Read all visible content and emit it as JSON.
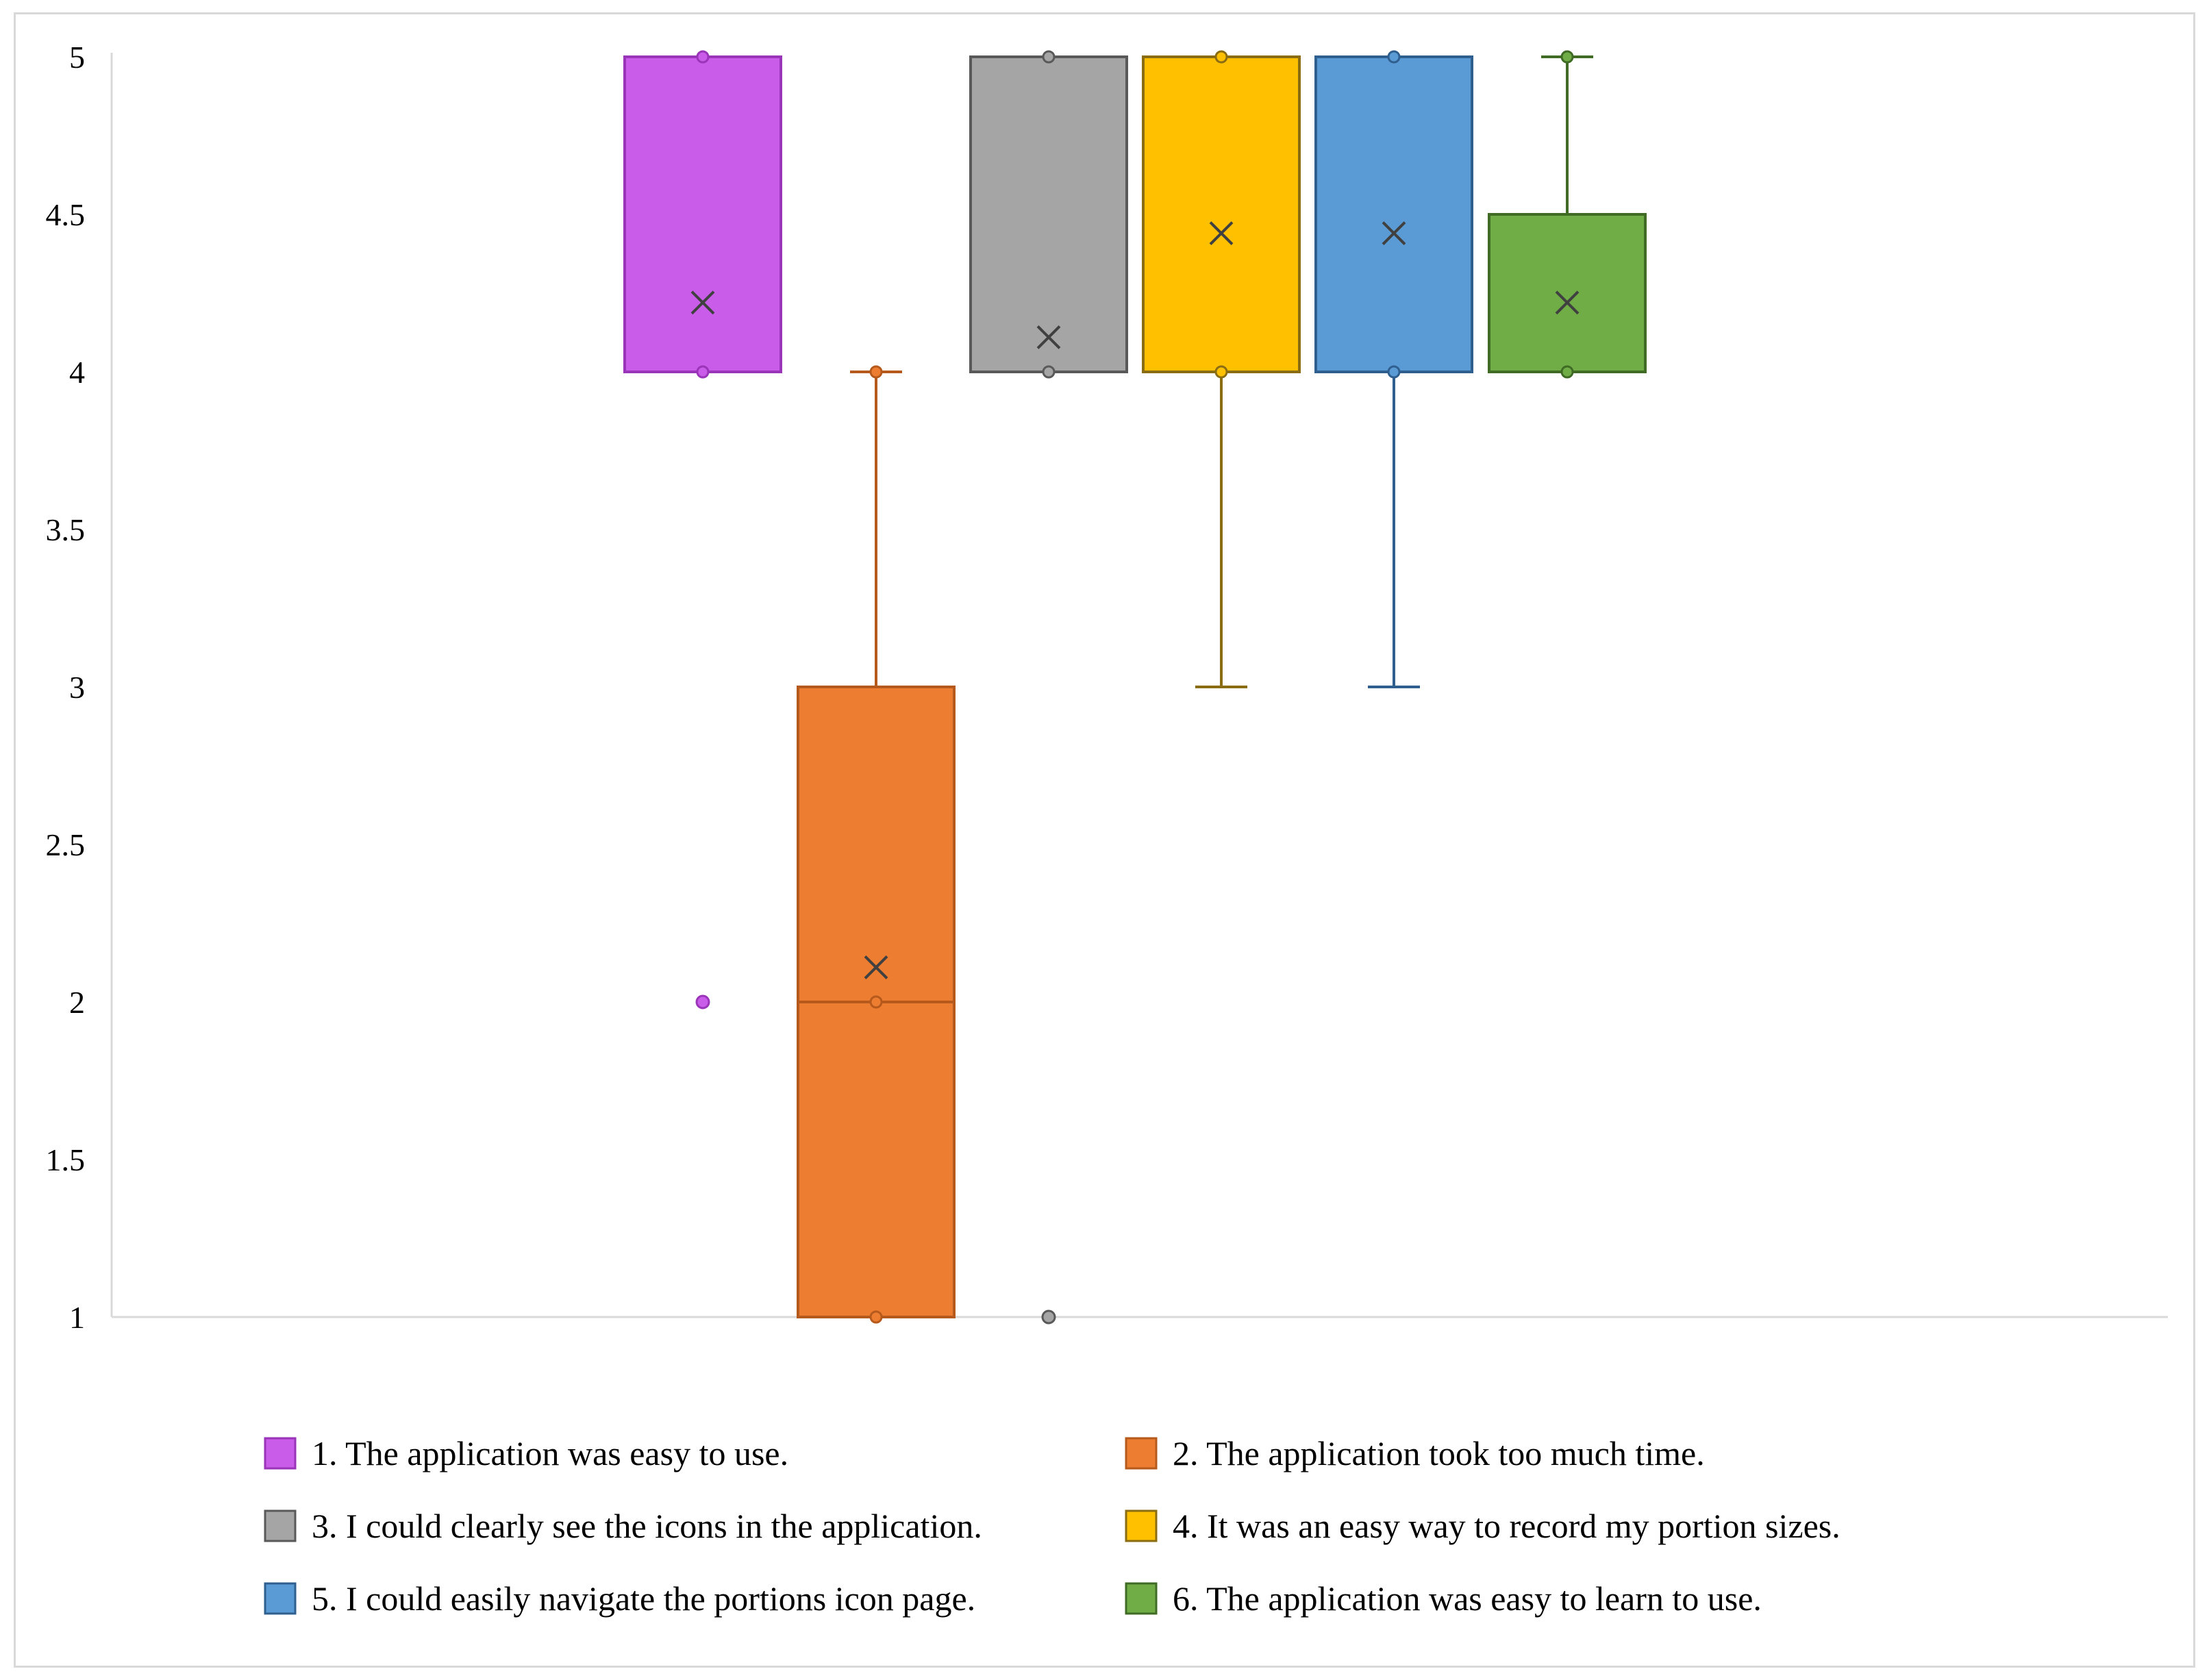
{
  "chart_data": {
    "type": "box",
    "title": "",
    "xlabel": "",
    "ylabel": "",
    "ylim": [
      1,
      5
    ],
    "yticks": [
      "1",
      "1.5",
      "2",
      "2.5",
      "3",
      "3.5",
      "4",
      "4.5",
      "5"
    ],
    "grid": false,
    "legend_position": "bottom",
    "series": [
      {
        "name": "1. The application was easy to use.",
        "color": "#c95ce8",
        "edge": "#9a34b8",
        "q1": 4,
        "median": 5,
        "q3": 5,
        "whisker_low": 4,
        "whisker_high": 5,
        "mean": 4.22,
        "points": [
          5,
          4
        ],
        "outliers": [
          2
        ]
      },
      {
        "name": "2. The application took too much time.",
        "color": "#ed7d31",
        "edge": "#b55a1c",
        "q1": 1,
        "median": 2,
        "q3": 3,
        "whisker_low": 1,
        "whisker_high": 4,
        "mean": 2.11,
        "points": [
          4,
          2,
          1
        ],
        "outliers": []
      },
      {
        "name": "3. I could clearly see the icons in the application.",
        "color": "#a5a5a5",
        "edge": "#595959",
        "q1": 4,
        "median": 5,
        "q3": 5,
        "whisker_low": 4,
        "whisker_high": 5,
        "mean": 4.11,
        "points": [
          5,
          4
        ],
        "outliers": [
          1
        ]
      },
      {
        "name": "4. It was an easy way to record my portion sizes.",
        "color": "#ffc000",
        "edge": "#8a6d12",
        "q1": 4,
        "median": 5,
        "q3": 5,
        "whisker_low": 3,
        "whisker_high": 5,
        "mean": 4.44,
        "points": [
          5,
          4
        ],
        "outliers": []
      },
      {
        "name": "5. I could easily navigate the portions icon page.",
        "color": "#5b9bd5",
        "edge": "#2f5f8f",
        "q1": 4,
        "median": 5,
        "q3": 5,
        "whisker_low": 3,
        "whisker_high": 5,
        "mean": 4.44,
        "points": [
          5,
          4
        ],
        "outliers": []
      },
      {
        "name": "6. The application was easy to learn to use.",
        "color": "#70ad47",
        "edge": "#3f6b24",
        "q1": 4,
        "median": 4,
        "q3": 4.5,
        "whisker_low": 4,
        "whisker_high": 5,
        "mean": 4.22,
        "points": [
          5,
          4
        ],
        "outliers": []
      }
    ]
  }
}
